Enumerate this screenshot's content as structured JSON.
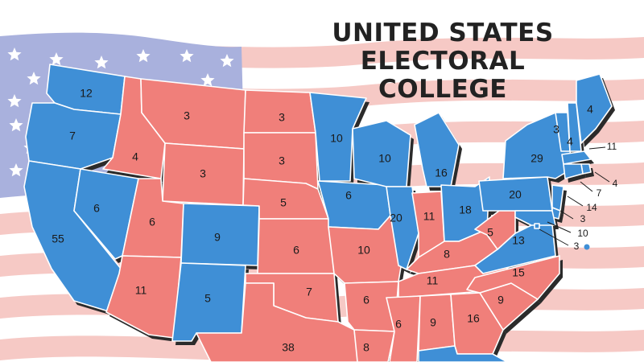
{
  "title": {
    "line1": "UNITED STATES",
    "line2": "ELECTORAL COLLEGE"
  },
  "colors": {
    "democrat": "#3f8fd6",
    "republican": "#f07f7a",
    "flag_stripe": "#f6c9c5",
    "flag_canton": "#a9b1dd",
    "star": "#ffffff",
    "shadow": "#2b2b2b",
    "dot": "#3f8fd6"
  },
  "background": {
    "description_icon": "us-flag-icon"
  },
  "states": [
    {
      "id": "wa",
      "votes": "12",
      "party": "democrat"
    },
    {
      "id": "or",
      "votes": "7",
      "party": "democrat"
    },
    {
      "id": "ca",
      "votes": "55",
      "party": "democrat"
    },
    {
      "id": "nv",
      "votes": "6",
      "party": "democrat"
    },
    {
      "id": "id",
      "votes": "4",
      "party": "republican"
    },
    {
      "id": "mt",
      "votes": "3",
      "party": "republican"
    },
    {
      "id": "wy",
      "votes": "3",
      "party": "republican"
    },
    {
      "id": "ut",
      "votes": "6",
      "party": "republican"
    },
    {
      "id": "co",
      "votes": "9",
      "party": "democrat"
    },
    {
      "id": "az",
      "votes": "11",
      "party": "republican"
    },
    {
      "id": "nm",
      "votes": "5",
      "party": "democrat"
    },
    {
      "id": "nd",
      "votes": "3",
      "party": "republican"
    },
    {
      "id": "sd",
      "votes": "3",
      "party": "republican"
    },
    {
      "id": "ne",
      "votes": "5",
      "party": "republican"
    },
    {
      "id": "ks",
      "votes": "6",
      "party": "republican"
    },
    {
      "id": "ok",
      "votes": "7",
      "party": "republican"
    },
    {
      "id": "tx",
      "votes": "38",
      "party": "republican"
    },
    {
      "id": "mn",
      "votes": "10",
      "party": "democrat"
    },
    {
      "id": "ia",
      "votes": "6",
      "party": "democrat"
    },
    {
      "id": "mo",
      "votes": "10",
      "party": "republican"
    },
    {
      "id": "ar",
      "votes": "6",
      "party": "republican"
    },
    {
      "id": "la",
      "votes": "8",
      "party": "republican"
    },
    {
      "id": "wi",
      "votes": "10",
      "party": "democrat"
    },
    {
      "id": "il",
      "votes": "20",
      "party": "democrat"
    },
    {
      "id": "mi",
      "votes": "16",
      "party": "democrat"
    },
    {
      "id": "in",
      "votes": "11",
      "party": "republican"
    },
    {
      "id": "oh",
      "votes": "18",
      "party": "democrat"
    },
    {
      "id": "ky",
      "votes": "8",
      "party": "republican"
    },
    {
      "id": "tn",
      "votes": "11",
      "party": "republican"
    },
    {
      "id": "ms",
      "votes": "6",
      "party": "republican"
    },
    {
      "id": "al",
      "votes": "9",
      "party": "republican"
    },
    {
      "id": "ga",
      "votes": "16",
      "party": "republican"
    },
    {
      "id": "fl",
      "votes": "",
      "party": "democrat"
    },
    {
      "id": "sc",
      "votes": "9",
      "party": "republican"
    },
    {
      "id": "nc",
      "votes": "15",
      "party": "republican"
    },
    {
      "id": "va",
      "votes": "13",
      "party": "democrat"
    },
    {
      "id": "wv",
      "votes": "5",
      "party": "republican"
    },
    {
      "id": "pa",
      "votes": "20",
      "party": "democrat"
    },
    {
      "id": "ny",
      "votes": "29",
      "party": "democrat"
    },
    {
      "id": "vt",
      "votes": "3",
      "party": "democrat"
    },
    {
      "id": "nh",
      "votes": "4",
      "party": "democrat"
    },
    {
      "id": "me",
      "votes": "4",
      "party": "democrat"
    },
    {
      "id": "ma",
      "votes": "11",
      "party": "democrat"
    },
    {
      "id": "ri",
      "votes": "4",
      "party": "democrat"
    },
    {
      "id": "ct",
      "votes": "7",
      "party": "democrat"
    },
    {
      "id": "nj",
      "votes": "14",
      "party": "democrat"
    },
    {
      "id": "de",
      "votes": "3",
      "party": "democrat"
    },
    {
      "id": "md",
      "votes": "10",
      "party": "democrat"
    },
    {
      "id": "dc",
      "votes": "3",
      "party": "democrat"
    }
  ]
}
